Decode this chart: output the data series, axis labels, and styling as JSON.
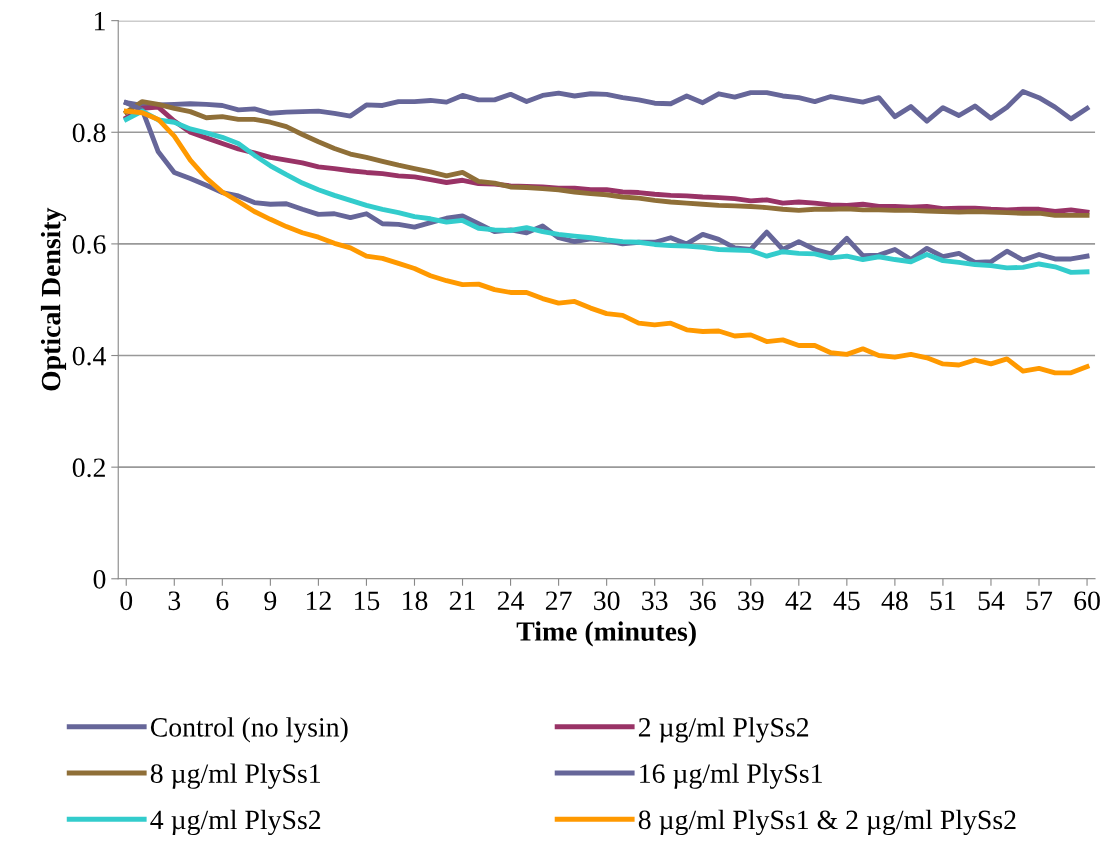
{
  "chart_data": {
    "type": "line",
    "xlabel": "Time (minutes)",
    "ylabel": "Optical Density",
    "x": [
      0,
      1,
      2,
      3,
      4,
      5,
      6,
      7,
      8,
      9,
      10,
      11,
      12,
      13,
      14,
      15,
      16,
      17,
      18,
      19,
      20,
      21,
      22,
      23,
      24,
      25,
      26,
      27,
      28,
      29,
      30,
      31,
      32,
      33,
      34,
      35,
      36,
      37,
      38,
      39,
      40,
      41,
      42,
      43,
      44,
      45,
      46,
      47,
      48,
      49,
      50,
      51,
      52,
      53,
      54,
      55,
      56,
      57,
      58,
      59,
      60
    ],
    "xlim": [
      -0.5,
      60.5
    ],
    "xticks": [
      0,
      3,
      6,
      9,
      12,
      15,
      18,
      21,
      24,
      27,
      30,
      33,
      36,
      39,
      42,
      45,
      48,
      51,
      54,
      57,
      60
    ],
    "ylim": [
      0,
      1
    ],
    "yticks": [
      0,
      0.2,
      0.4,
      0.6,
      0.8,
      1
    ],
    "grid": "y",
    "legend": "bottom",
    "marker": "none",
    "line_style": "solid",
    "series": [
      {
        "name": "Control (no lysin)",
        "color": "#666699",
        "values": [
          0.853,
          0.848,
          0.849,
          0.85,
          0.851,
          0.85,
          0.848,
          0.84,
          0.842,
          0.834,
          0.836,
          0.837,
          0.838,
          0.834,
          0.829,
          0.849,
          0.848,
          0.855,
          0.855,
          0.857,
          0.854,
          0.866,
          0.858,
          0.858,
          0.868,
          0.855,
          0.866,
          0.87,
          0.865,
          0.869,
          0.868,
          0.862,
          0.858,
          0.852,
          0.851,
          0.865,
          0.853,
          0.869,
          0.863,
          0.871,
          0.871,
          0.865,
          0.862,
          0.855,
          0.864,
          0.859,
          0.854,
          0.862,
          0.828,
          0.846,
          0.82,
          0.844,
          0.83,
          0.847,
          0.825,
          0.845,
          0.873,
          0.862,
          0.845,
          0.824,
          0.843
        ]
      },
      {
        "name": "2 µg/ml PlySs2",
        "color": "#993366",
        "values": [
          0.826,
          0.843,
          0.845,
          0.82,
          0.8,
          0.79,
          0.78,
          0.77,
          0.763,
          0.755,
          0.75,
          0.745,
          0.738,
          0.735,
          0.731,
          0.728,
          0.726,
          0.722,
          0.72,
          0.715,
          0.71,
          0.714,
          0.708,
          0.707,
          0.704,
          0.703,
          0.702,
          0.7,
          0.7,
          0.697,
          0.697,
          0.693,
          0.692,
          0.689,
          0.687,
          0.686,
          0.684,
          0.683,
          0.681,
          0.677,
          0.679,
          0.673,
          0.675,
          0.673,
          0.67,
          0.669,
          0.671,
          0.667,
          0.667,
          0.666,
          0.667,
          0.663,
          0.664,
          0.664,
          0.662,
          0.661,
          0.662,
          0.662,
          0.658,
          0.661,
          0.657
        ]
      },
      {
        "name": "8 µg/ml PlySs1",
        "color": "#8f6f38",
        "values": [
          0.836,
          0.855,
          0.85,
          0.843,
          0.837,
          0.826,
          0.828,
          0.823,
          0.823,
          0.818,
          0.81,
          0.796,
          0.783,
          0.771,
          0.761,
          0.755,
          0.748,
          0.741,
          0.735,
          0.729,
          0.722,
          0.728,
          0.712,
          0.709,
          0.702,
          0.701,
          0.699,
          0.697,
          0.693,
          0.69,
          0.688,
          0.684,
          0.682,
          0.678,
          0.675,
          0.673,
          0.671,
          0.669,
          0.668,
          0.667,
          0.665,
          0.662,
          0.66,
          0.662,
          0.662,
          0.663,
          0.661,
          0.661,
          0.66,
          0.66,
          0.659,
          0.658,
          0.657,
          0.658,
          0.657,
          0.656,
          0.655,
          0.655,
          0.651,
          0.651,
          0.651
        ]
      },
      {
        "name": "16 µg/ml PlySs1",
        "color": "#666699",
        "values": [
          0.853,
          0.84,
          0.765,
          0.728,
          0.717,
          0.705,
          0.692,
          0.686,
          0.674,
          0.671,
          0.672,
          0.662,
          0.653,
          0.654,
          0.647,
          0.654,
          0.636,
          0.635,
          0.63,
          0.638,
          0.646,
          0.65,
          0.636,
          0.622,
          0.625,
          0.62,
          0.632,
          0.611,
          0.604,
          0.609,
          0.606,
          0.6,
          0.603,
          0.603,
          0.611,
          0.6,
          0.617,
          0.608,
          0.593,
          0.59,
          0.621,
          0.59,
          0.604,
          0.59,
          0.582,
          0.61,
          0.579,
          0.58,
          0.59,
          0.572,
          0.592,
          0.577,
          0.583,
          0.567,
          0.568,
          0.587,
          0.571,
          0.581,
          0.573,
          0.573,
          0.578
        ]
      },
      {
        "name": "4 µg/ml PlySs2",
        "color": "#33cccc",
        "values": [
          0.823,
          0.838,
          0.822,
          0.818,
          0.806,
          0.799,
          0.791,
          0.78,
          0.759,
          0.74,
          0.724,
          0.709,
          0.697,
          0.687,
          0.678,
          0.669,
          0.662,
          0.656,
          0.649,
          0.645,
          0.639,
          0.642,
          0.628,
          0.625,
          0.624,
          0.629,
          0.622,
          0.617,
          0.614,
          0.611,
          0.607,
          0.604,
          0.603,
          0.599,
          0.597,
          0.596,
          0.594,
          0.59,
          0.589,
          0.588,
          0.578,
          0.586,
          0.583,
          0.582,
          0.575,
          0.578,
          0.572,
          0.577,
          0.572,
          0.568,
          0.581,
          0.57,
          0.567,
          0.563,
          0.561,
          0.557,
          0.558,
          0.564,
          0.559,
          0.549,
          0.55
        ]
      },
      {
        "name": "8 µg/ml PlySs1 & 2 µg/ml PlySs2",
        "color": "#ff9900",
        "values": [
          0.838,
          0.835,
          0.823,
          0.793,
          0.75,
          0.718,
          0.693,
          0.676,
          0.658,
          0.644,
          0.631,
          0.62,
          0.612,
          0.601,
          0.593,
          0.578,
          0.574,
          0.565,
          0.556,
          0.543,
          0.534,
          0.527,
          0.528,
          0.518,
          0.513,
          0.513,
          0.502,
          0.494,
          0.497,
          0.485,
          0.475,
          0.472,
          0.458,
          0.455,
          0.458,
          0.446,
          0.443,
          0.444,
          0.435,
          0.437,
          0.425,
          0.428,
          0.418,
          0.418,
          0.405,
          0.402,
          0.412,
          0.4,
          0.397,
          0.402,
          0.396,
          0.385,
          0.383,
          0.392,
          0.385,
          0.394,
          0.372,
          0.377,
          0.369,
          0.369,
          0.38
        ]
      }
    ]
  }
}
